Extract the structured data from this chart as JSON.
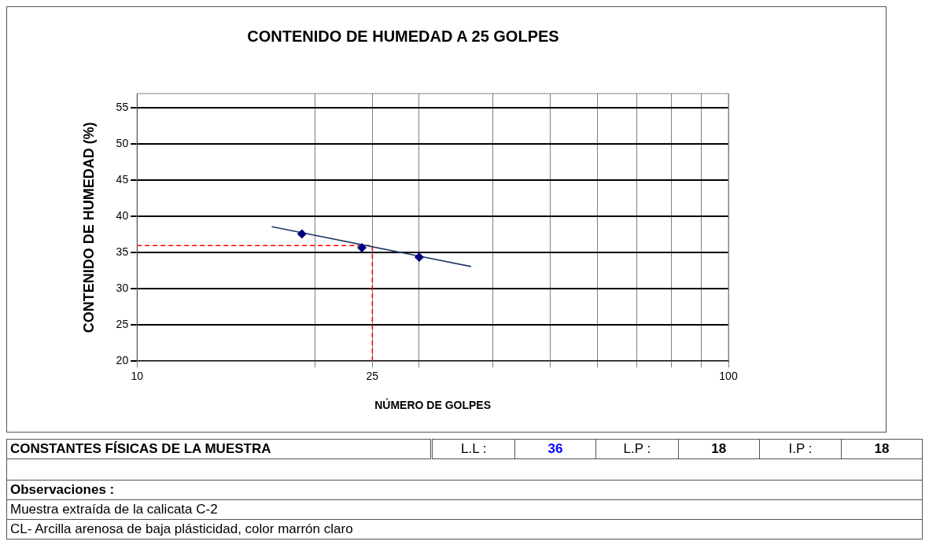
{
  "chart_data": {
    "type": "scatter",
    "title": "CONTENIDO DE HUMEDAD A 25 GOLPES",
    "xlabel": "NÚMERO DE GOLPES",
    "ylabel": "CONTENIDO DE HUMEDAD (%)",
    "log": "x",
    "xlim": [
      10,
      100
    ],
    "xticks": [
      10,
      {
        "value": 20,
        "label": null
      },
      25,
      {
        "value": 30,
        "label": null
      },
      {
        "value": 40,
        "label": null
      },
      {
        "value": 50,
        "label": null
      },
      {
        "value": 60,
        "label": null
      },
      {
        "value": 70,
        "label": null
      },
      {
        "value": 80,
        "label": null
      },
      {
        "value": 90,
        "label": null
      },
      100
    ],
    "ylim": [
      20,
      57
    ],
    "yticks": [
      20,
      25,
      30,
      35,
      40,
      45,
      50,
      55
    ],
    "grid": true,
    "legend": false,
    "series": [
      {
        "color": "#000080",
        "marker": "diamond",
        "x": [
          19,
          24,
          30
        ],
        "values": [
          37.6,
          35.7,
          34.4
        ]
      },
      {
        "type": "line",
        "color": "#1f3864",
        "marker": "none",
        "line_style": "solid",
        "x": [
          16.9,
          36.7
        ],
        "values": [
          38.6,
          33.1
        ]
      },
      {
        "type": "line",
        "color": "#ff0000",
        "marker": "none",
        "line_style": "dashed",
        "x": [
          10,
          25,
          25
        ],
        "values": [
          36,
          36,
          20
        ]
      }
    ],
    "annotations": [
      "CONSTANTES FÍSICAS DE LA MUESTRA",
      "L.L :",
      "36",
      "L.P :",
      "18",
      "I.P :",
      "18",
      "Observaciones :",
      "Muestra extraída de la calicata C-2",
      "CL- Arcilla arenosa de baja plásticidad, color marrón claro"
    ]
  }
}
